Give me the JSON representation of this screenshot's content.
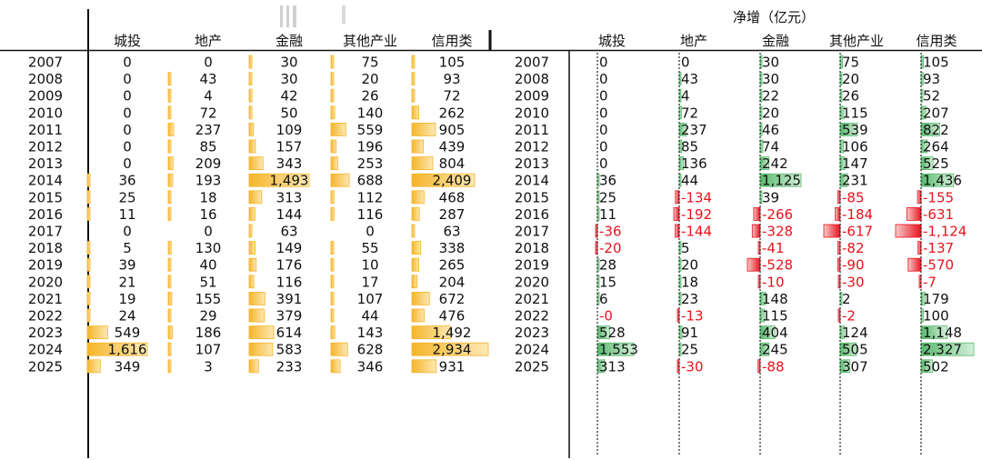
{
  "colors": {
    "left_bar": "#f5b52a",
    "left_bar_light": "#fde8b4",
    "pos_bar": "#57b96d",
    "pos_bar_light": "#d3eed8",
    "neg_bar": "#e8131b",
    "neg_bar_light": "#f8c9cb",
    "text": "#111111",
    "negative_text": "#e8131b"
  },
  "chart_data": [
    {
      "type": "table",
      "title": "",
      "columns": [
        "城投",
        "地产",
        "金融",
        "其他产业",
        "信用类"
      ],
      "rows": [
        "2007",
        "2008",
        "2009",
        "2010",
        "2011",
        "2012",
        "2013",
        "2014",
        "2015",
        "2016",
        "2017",
        "2018",
        "2019",
        "2020",
        "2021",
        "2022",
        "2023",
        "2024",
        "2025"
      ],
      "series": [
        {
          "name": "城投",
          "values": [
            0,
            0,
            0,
            0,
            0,
            0,
            0,
            36,
            25,
            11,
            0,
            5,
            39,
            21,
            19,
            24,
            549,
            1616,
            349
          ]
        },
        {
          "name": "地产",
          "values": [
            0,
            43,
            4,
            72,
            237,
            85,
            209,
            193,
            18,
            16,
            0,
            130,
            40,
            51,
            155,
            29,
            186,
            107,
            3
          ]
        },
        {
          "name": "金融",
          "values": [
            30,
            30,
            42,
            50,
            109,
            157,
            343,
            1493,
            313,
            144,
            63,
            149,
            176,
            116,
            391,
            379,
            614,
            583,
            233
          ]
        },
        {
          "name": "其他产业",
          "values": [
            75,
            20,
            26,
            140,
            559,
            196,
            253,
            688,
            112,
            116,
            0,
            55,
            10,
            17,
            107,
            44,
            143,
            628,
            346
          ]
        },
        {
          "name": "信用类",
          "values": [
            105,
            93,
            72,
            262,
            905,
            439,
            804,
            2409,
            468,
            287,
            63,
            338,
            265,
            204,
            672,
            476,
            1492,
            2934,
            931
          ]
        }
      ],
      "display": {
        "城投": [
          "0",
          "0",
          "0",
          "0",
          "0",
          "0",
          "0",
          "36",
          "25",
          "11",
          "0",
          "5",
          "39",
          "21",
          "19",
          "24",
          "549",
          "1,616",
          "349"
        ],
        "地产": [
          "0",
          "43",
          "4",
          "72",
          "237",
          "85",
          "209",
          "193",
          "18",
          "16",
          "0",
          "130",
          "40",
          "51",
          "155",
          "29",
          "186",
          "107",
          "3"
        ],
        "金融": [
          "30",
          "30",
          "42",
          "50",
          "109",
          "157",
          "343",
          "1,493",
          "313",
          "144",
          "63",
          "149",
          "176",
          "116",
          "391",
          "379",
          "614",
          "583",
          "233"
        ],
        "其他产业": [
          "75",
          "20",
          "26",
          "140",
          "559",
          "196",
          "253",
          "688",
          "112",
          "116",
          "0",
          "55",
          "10",
          "17",
          "107",
          "44",
          "143",
          "628",
          "346"
        ],
        "信用类": [
          "105",
          "93",
          "72",
          "262",
          "905",
          "439",
          "804",
          "2,409",
          "468",
          "287",
          "63",
          "338",
          "265",
          "204",
          "672",
          "476",
          "1,492",
          "2,934",
          "931"
        ]
      }
    },
    {
      "type": "table",
      "title": "净增（亿元）",
      "columns": [
        "城投",
        "地产",
        "金融",
        "其他产业",
        "信用类"
      ],
      "rows": [
        "2007",
        "2008",
        "2009",
        "2010",
        "2011",
        "2012",
        "2013",
        "2014",
        "2015",
        "2016",
        "2017",
        "2018",
        "2019",
        "2020",
        "2021",
        "2022",
        "2023",
        "2024",
        "2025"
      ],
      "series": [
        {
          "name": "城投",
          "values": [
            0,
            0,
            0,
            0,
            0,
            0,
            0,
            36,
            25,
            11,
            -36,
            -20,
            28,
            15,
            6,
            0,
            528,
            1553,
            313
          ]
        },
        {
          "name": "地产",
          "values": [
            0,
            43,
            4,
            72,
            237,
            85,
            136,
            44,
            -134,
            -192,
            -144,
            5,
            20,
            18,
            23,
            -13,
            91,
            25,
            -30
          ]
        },
        {
          "name": "金融",
          "values": [
            30,
            30,
            22,
            20,
            46,
            74,
            242,
            1125,
            39,
            -266,
            -328,
            -41,
            -528,
            -10,
            148,
            115,
            404,
            245,
            -88
          ]
        },
        {
          "name": "其他产业",
          "values": [
            75,
            20,
            26,
            115,
            539,
            106,
            147,
            231,
            -85,
            -184,
            -617,
            -82,
            -90,
            -30,
            2,
            -2,
            124,
            505,
            307
          ]
        },
        {
          "name": "信用类",
          "values": [
            105,
            93,
            52,
            207,
            822,
            264,
            525,
            1436,
            -155,
            -631,
            -1124,
            -137,
            -570,
            -7,
            179,
            100,
            1148,
            2327,
            502
          ]
        }
      ],
      "display": {
        "城投": [
          "0",
          "0",
          "0",
          "0",
          "0",
          "0",
          "0",
          "36",
          "25",
          "11",
          "-36",
          "-20",
          "28",
          "15",
          "6",
          "-0",
          "528",
          "1,553",
          "313"
        ],
        "地产": [
          "0",
          "43",
          "4",
          "72",
          "237",
          "85",
          "136",
          "44",
          "-134",
          "-192",
          "-144",
          "5",
          "20",
          "18",
          "23",
          "-13",
          "91",
          "25",
          "-30"
        ],
        "金融": [
          "30",
          "30",
          "22",
          "20",
          "46",
          "74",
          "242",
          "1,125",
          "39",
          "-266",
          "-328",
          "-41",
          "-528",
          "-10",
          "148",
          "115",
          "404",
          "245",
          "-88"
        ],
        "其他产业": [
          "75",
          "20",
          "26",
          "115",
          "539",
          "106",
          "147",
          "231",
          "-85",
          "-184",
          "-617",
          "-82",
          "-90",
          "-30",
          "2",
          "-2",
          "124",
          "505",
          "307"
        ],
        "信用类": [
          "105",
          "93",
          "52",
          "207",
          "822",
          "264",
          "525",
          "1,436",
          "-155",
          "-631",
          "-1,124",
          "-137",
          "-570",
          "-7",
          "179",
          "100",
          "1,148",
          "2,327",
          "502"
        ]
      }
    }
  ]
}
